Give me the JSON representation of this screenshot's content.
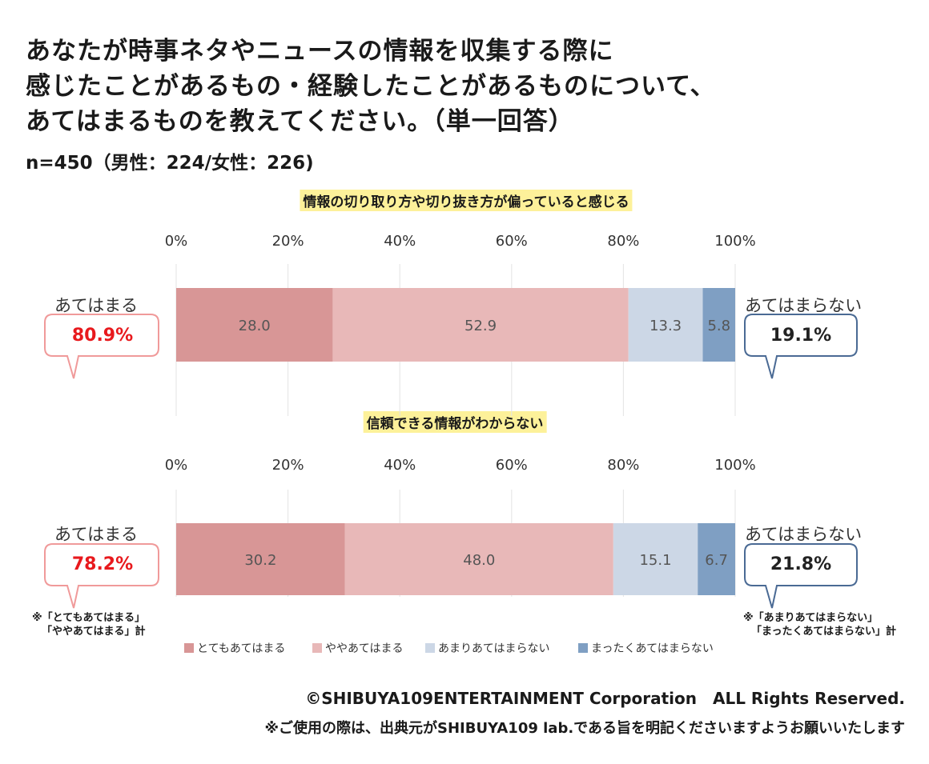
{
  "title_lines": [
    "あなたが時事ネタやニュースの情報を収集する際に",
    "感じたことがあるもの・経験したことがあるものについて、",
    "あてはまるものを教えてください。（単一回答）"
  ],
  "sample": "n=450（男性：224/女性：226)",
  "colors": {
    "very_agree": "#d89696",
    "somewhat_agree": "#e8b8b8",
    "somewhat_disagree": "#ccd7e6",
    "not_at_all": "#7f9fc3",
    "agree_bubble_border": "#f09a9a",
    "disagree_bubble_border": "#4a6a94",
    "highlight": "#fdf19a"
  },
  "labels": {
    "agree": "あてはまる",
    "disagree": "あてはまらない",
    "note_agree_1": "※「とてもあてはまる」",
    "note_agree_2": "「ややあてはまる」計",
    "note_disagree_1": "※「あまりあてはまらない」",
    "note_disagree_2": "「まったくあてはまらない」計"
  },
  "chart_data": {
    "type": "bar",
    "orientation": "horizontal-stacked-100",
    "xlim": [
      0,
      100
    ],
    "ticks": [
      "0%",
      "20%",
      "40%",
      "60%",
      "80%",
      "100%"
    ],
    "legend_position": "bottom",
    "series_names": [
      "とてもあてはまる",
      "ややあてはまる",
      "あまりあてはまらない",
      "まったくあてはまらない"
    ],
    "charts": [
      {
        "title": "情報の切り取り方や切り抜き方が偏っていると感じる",
        "values": [
          28.0,
          52.9,
          13.3,
          5.8
        ],
        "agree_total": "80.9%",
        "disagree_total": "19.1%"
      },
      {
        "title": "信頼できる情報がわからない",
        "values": [
          30.2,
          48.0,
          15.1,
          6.7
        ],
        "agree_total": "78.2%",
        "disagree_total": "21.8%"
      }
    ]
  },
  "footer": {
    "copyright": "©SHIBUYA109ENTERTAINMENT Corporation　ALL Rights Reserved.",
    "usage": "※ご使用の際は、出典元がSHIBUYA109 lab.である旨を明記くださいますようお願いいたします"
  }
}
